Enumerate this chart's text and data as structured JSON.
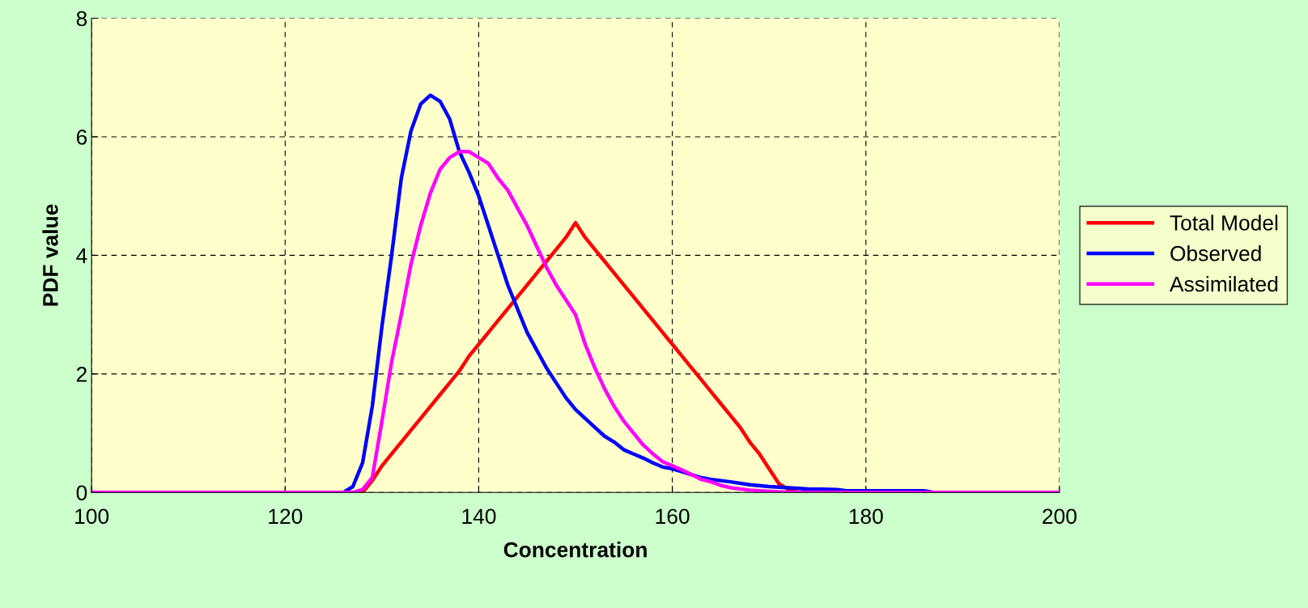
{
  "chart_data": {
    "type": "line",
    "xlabel": "Concentration",
    "ylabel": "PDF value",
    "xlim": [
      100,
      200
    ],
    "ylim": [
      0,
      8
    ],
    "xticks": [
      100,
      120,
      140,
      160,
      180,
      200
    ],
    "yticks": [
      0,
      2,
      4,
      6,
      8
    ],
    "grid": true,
    "legend": "right",
    "marker": "none",
    "line_style": "solid",
    "series": [
      {
        "name": "Total Model",
        "color": "#ff0000",
        "x": [
          100,
          128,
          129,
          130,
          131,
          132,
          133,
          134,
          135,
          136,
          137,
          138,
          139,
          140,
          141,
          142,
          143,
          144,
          145,
          146,
          147,
          148,
          149,
          150,
          151,
          152,
          153,
          154,
          155,
          156,
          157,
          158,
          159,
          160,
          161,
          162,
          163,
          164,
          165,
          166,
          167,
          168,
          169,
          170,
          171,
          172,
          173,
          200
        ],
        "values": [
          0,
          0,
          0.2,
          0.45,
          0.65,
          0.85,
          1.05,
          1.25,
          1.45,
          1.65,
          1.85,
          2.05,
          2.3,
          2.5,
          2.7,
          2.9,
          3.1,
          3.3,
          3.5,
          3.7,
          3.9,
          4.1,
          4.3,
          4.55,
          4.3,
          4.1,
          3.9,
          3.7,
          3.5,
          3.3,
          3.1,
          2.9,
          2.7,
          2.5,
          2.3,
          2.1,
          1.9,
          1.7,
          1.5,
          1.3,
          1.1,
          0.85,
          0.65,
          0.4,
          0.15,
          0.05,
          0,
          0
        ]
      },
      {
        "name": "Observed",
        "color": "#0000ff",
        "x": [
          100,
          126,
          127,
          128,
          129,
          130,
          131,
          132,
          133,
          134,
          135,
          136,
          137,
          138,
          139,
          140,
          141,
          142,
          143,
          144,
          145,
          146,
          147,
          148,
          149,
          150,
          151,
          152,
          153,
          154,
          155,
          156,
          157,
          158,
          159,
          160,
          161,
          162,
          163,
          164,
          165,
          166,
          168,
          170,
          172,
          174,
          177,
          178,
          186,
          187,
          200
        ],
        "values": [
          0,
          0,
          0.1,
          0.5,
          1.45,
          2.8,
          4.0,
          5.3,
          6.1,
          6.55,
          6.7,
          6.6,
          6.3,
          5.75,
          5.4,
          5.0,
          4.5,
          4.0,
          3.5,
          3.1,
          2.7,
          2.4,
          2.1,
          1.85,
          1.6,
          1.4,
          1.25,
          1.1,
          0.95,
          0.85,
          0.72,
          0.65,
          0.58,
          0.5,
          0.43,
          0.4,
          0.35,
          0.3,
          0.25,
          0.22,
          0.2,
          0.18,
          0.13,
          0.1,
          0.08,
          0.06,
          0.05,
          0.03,
          0.03,
          0,
          0
        ]
      },
      {
        "name": "Assimilated",
        "color": "#ff00ff",
        "x": [
          100,
          127,
          128,
          129,
          130,
          131,
          132,
          133,
          134,
          135,
          136,
          137,
          138,
          139,
          140,
          141,
          142,
          143,
          144,
          145,
          146,
          147,
          148,
          149,
          150,
          151,
          152,
          153,
          154,
          155,
          156,
          157,
          158,
          159,
          160,
          161,
          162,
          163,
          164,
          165,
          166,
          168,
          170,
          172,
          200
        ],
        "values": [
          0,
          0,
          0.05,
          0.25,
          1.2,
          2.2,
          3.0,
          3.85,
          4.5,
          5.05,
          5.45,
          5.65,
          5.75,
          5.75,
          5.65,
          5.55,
          5.3,
          5.1,
          4.8,
          4.5,
          4.15,
          3.8,
          3.5,
          3.25,
          3.0,
          2.5,
          2.1,
          1.75,
          1.45,
          1.2,
          1.0,
          0.8,
          0.65,
          0.52,
          0.45,
          0.38,
          0.3,
          0.22,
          0.18,
          0.12,
          0.08,
          0.04,
          0.02,
          0,
          0
        ]
      }
    ]
  }
}
